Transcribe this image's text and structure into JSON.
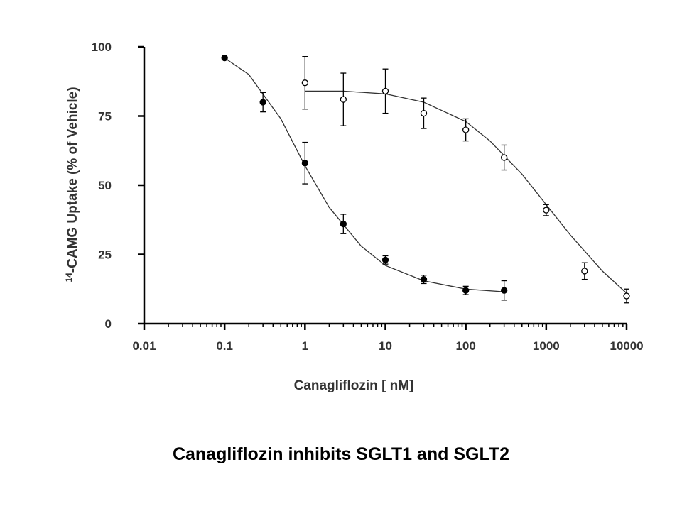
{
  "caption": "Canagliflozin inhibits SGLT1 and SGLT2",
  "chart_data": {
    "type": "scatter",
    "title": "",
    "xlabel": "Canagliflozin [ nM]",
    "ylabel_sup": "14",
    "ylabel": "-CAMG Uptake (% of Vehicle)",
    "xscale": "log",
    "xlim": [
      0.01,
      10000
    ],
    "ylim": [
      0,
      100
    ],
    "xticks": [
      "0.01",
      "0.1",
      "1",
      "10",
      "100",
      "1000",
      "10000"
    ],
    "yticks": [
      "0",
      "25",
      "50",
      "75",
      "100"
    ],
    "grid": false,
    "legend": "none",
    "series": [
      {
        "marker": "filled-circle",
        "color": "#000000",
        "x": [
          0.1,
          0.3,
          1,
          3,
          10,
          30,
          100,
          300
        ],
        "y": [
          96,
          80,
          58,
          36,
          23,
          16,
          12,
          12
        ],
        "err": [
          0,
          3.5,
          7.5,
          3.5,
          1.5,
          1.5,
          1.5,
          3.5
        ],
        "fit_curve": [
          [
            0.1,
            96
          ],
          [
            0.2,
            90
          ],
          [
            0.5,
            74
          ],
          [
            1,
            57
          ],
          [
            2,
            42
          ],
          [
            5,
            28
          ],
          [
            10,
            21
          ],
          [
            30,
            15.5
          ],
          [
            100,
            12.5
          ],
          [
            300,
            11.5
          ]
        ]
      },
      {
        "marker": "open-circle",
        "color": "#000000",
        "x": [
          1,
          3,
          10,
          30,
          100,
          300,
          1000,
          3000,
          10000
        ],
        "y": [
          87,
          81,
          84,
          76,
          70,
          60,
          41,
          19,
          10
        ],
        "err": [
          9.5,
          9.5,
          8,
          5.5,
          4,
          4.5,
          2,
          3,
          2.5
        ],
        "fit_curve": [
          [
            1,
            84
          ],
          [
            3,
            84
          ],
          [
            10,
            83
          ],
          [
            30,
            80
          ],
          [
            100,
            73
          ],
          [
            200,
            66
          ],
          [
            500,
            54
          ],
          [
            1000,
            43
          ],
          [
            2000,
            32
          ],
          [
            5000,
            19
          ],
          [
            10000,
            11
          ]
        ]
      }
    ]
  }
}
